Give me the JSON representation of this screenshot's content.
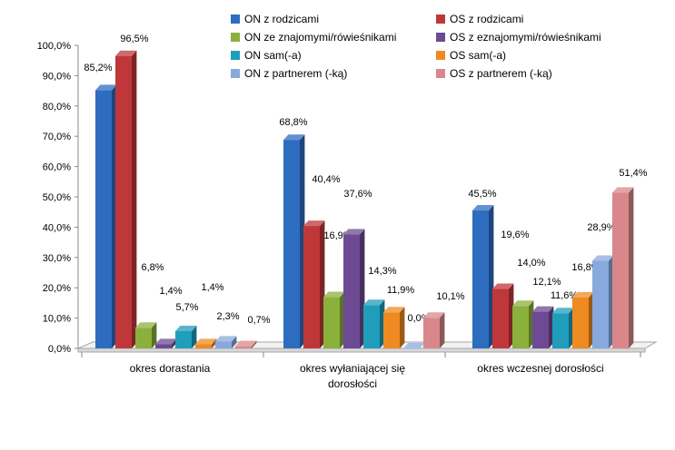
{
  "chart_data": {
    "type": "bar",
    "title": "",
    "xlabel": "",
    "ylabel": "",
    "ylim": [
      0,
      100
    ],
    "y_ticks": [
      "0,0%",
      "10,0%",
      "20,0%",
      "30,0%",
      "40,0%",
      "50,0%",
      "60,0%",
      "70,0%",
      "80,0%",
      "90,0%",
      "100,0%"
    ],
    "grid": false,
    "legend_position": "top",
    "categories": [
      [
        "okres dorastania"
      ],
      [
        "okres wyłaniającej się",
        "dorosłości"
      ],
      [
        "okres wczesnej dorosłości"
      ]
    ],
    "series": [
      {
        "name": "ON z rodzicami",
        "color": "#2e6cc0",
        "values": [
          85.2,
          68.8,
          45.5
        ],
        "labels": [
          "85,2%",
          "68,8%",
          "45,5%"
        ]
      },
      {
        "name": "OS z rodzicami",
        "color": "#c0373a",
        "values": [
          96.5,
          40.4,
          19.6
        ],
        "labels": [
          "96,5%",
          "40,4%",
          "19,6%"
        ]
      },
      {
        "name": "ON ze znajomymi/rówieśnikami",
        "color": "#8bb03c",
        "values": [
          6.8,
          16.9,
          14.0
        ],
        "labels": [
          "6,8%",
          "16,9%",
          "14,0%"
        ]
      },
      {
        "name": "OS z eznajomymi/rówieśnikami",
        "color": "#6d4a93",
        "values": [
          1.4,
          37.6,
          12.1
        ],
        "labels": [
          "1,4%",
          "37,6%",
          "12,1%"
        ]
      },
      {
        "name": "ON sam(-a)",
        "color": "#1f9dbb",
        "values": [
          5.7,
          14.3,
          11.6
        ],
        "labels": [
          "5,7%",
          "14,3%",
          "11,6%"
        ]
      },
      {
        "name": "OS sam(-a)",
        "color": "#ee8a22",
        "values": [
          1.4,
          11.9,
          16.8
        ],
        "labels": [
          "1,4%",
          "11,9%",
          "16,8%"
        ]
      },
      {
        "name": "ON z partnerem (-ką)",
        "color": "#88a9dd",
        "values": [
          2.3,
          0.0,
          28.9
        ],
        "labels": [
          "2,3%",
          "0,0%",
          "28,9%"
        ]
      },
      {
        "name": "OS z partnerem (-ką)",
        "color": "#d9878a",
        "values": [
          0.7,
          10.1,
          51.4
        ],
        "labels": [
          "0,7%",
          "10,1%",
          "51,4%"
        ]
      }
    ]
  }
}
